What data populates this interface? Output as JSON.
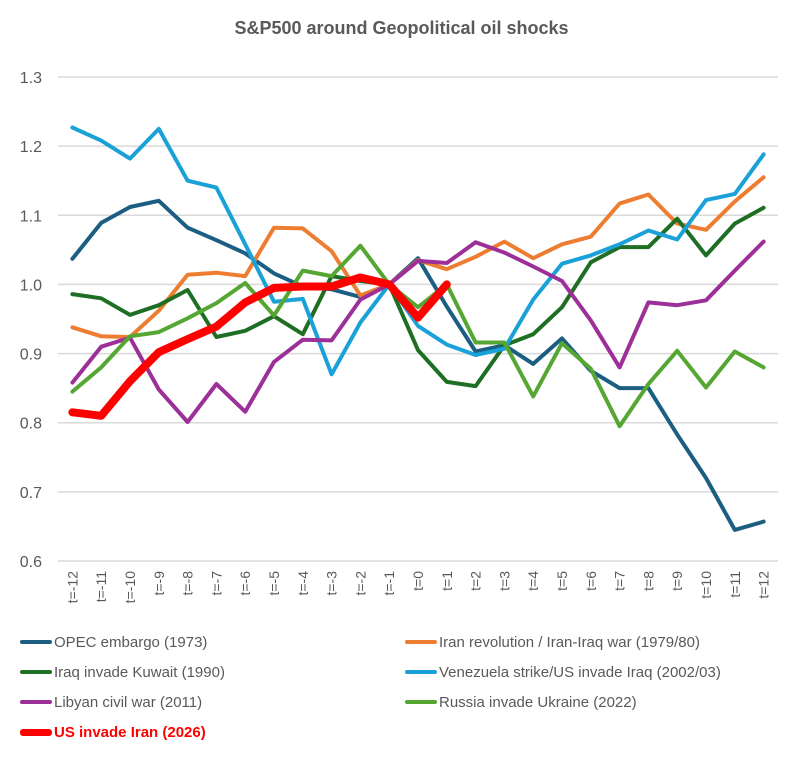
{
  "chart_data": {
    "type": "line",
    "title": "S&P500 around Geopolitical oil shocks",
    "xlabel": "",
    "ylabel": "",
    "ylim": [
      0.6,
      1.3
    ],
    "yticks": [
      "0.6",
      "0.7",
      "0.8",
      "0.9",
      "1.0",
      "1.1",
      "1.2",
      "1.3"
    ],
    "ytick_values": [
      0.6,
      0.7,
      0.8,
      0.9,
      1.0,
      1.1,
      1.2,
      1.3
    ],
    "grid": true,
    "legend_position": "bottom",
    "categories": [
      "t=-12",
      "t=-11",
      "t=-10",
      "t=-9",
      "t=-8",
      "t=-7",
      "t=-6",
      "t=-5",
      "t=-4",
      "t=-3",
      "t=-2",
      "t=-1",
      "t=0",
      "t=1",
      "t=2",
      "t=3",
      "t=4",
      "t=5",
      "t=6",
      "t=7",
      "t=8",
      "t=9",
      "t=10",
      "t=11",
      "t=12"
    ],
    "series": [
      {
        "name": "OPEC embargo (1973)",
        "color": "#1b5e82",
        "bold": false,
        "values": [
          1.037,
          1.089,
          1.112,
          1.121,
          1.082,
          1.064,
          1.045,
          1.016,
          0.997,
          0.993,
          0.982,
          1.0,
          1.038,
          0.968,
          0.903,
          0.912,
          0.885,
          0.922,
          0.875,
          0.85,
          0.85,
          0.783,
          0.72,
          0.645,
          0.657
        ]
      },
      {
        "name": "Iran revolution / Iran-Iraq war (1979/80)",
        "color": "#ed7d31",
        "bold": false,
        "values": [
          0.938,
          0.925,
          0.924,
          0.962,
          1.014,
          1.017,
          1.012,
          1.082,
          1.081,
          1.048,
          0.984,
          1.0,
          1.035,
          1.022,
          1.04,
          1.062,
          1.038,
          1.058,
          1.069,
          1.117,
          1.13,
          1.088,
          1.079,
          1.12,
          1.155
        ]
      },
      {
        "name": "Iraq invade Kuwait (1990)",
        "color": "#1e6e24",
        "bold": false,
        "values": [
          0.986,
          0.98,
          0.956,
          0.97,
          0.992,
          0.924,
          0.933,
          0.954,
          0.928,
          1.012,
          1.005,
          1.0,
          0.905,
          0.859,
          0.853,
          0.912,
          0.928,
          0.967,
          1.032,
          1.054,
          1.054,
          1.095,
          1.042,
          1.088,
          1.111
        ]
      },
      {
        "name": "Venezuela strike/US invade Iraq (2002/03)",
        "color": "#1aa2d8",
        "bold": false,
        "values": [
          1.227,
          1.208,
          1.182,
          1.225,
          1.15,
          1.14,
          1.058,
          0.975,
          0.979,
          0.87,
          0.945,
          1.0,
          0.94,
          0.913,
          0.898,
          0.907,
          0.978,
          1.03,
          1.042,
          1.058,
          1.078,
          1.065,
          1.122,
          1.131,
          1.188
        ]
      },
      {
        "name": "Libyan civil war (2011)",
        "color": "#9c2f98",
        "bold": false,
        "values": [
          0.858,
          0.91,
          0.923,
          0.848,
          0.801,
          0.856,
          0.816,
          0.888,
          0.92,
          0.919,
          0.978,
          1.0,
          1.034,
          1.031,
          1.061,
          1.046,
          1.026,
          1.005,
          0.948,
          0.88,
          0.974,
          0.97,
          0.977,
          1.02,
          1.062
        ]
      },
      {
        "name": "Russia invade Ukraine (2022)",
        "color": "#55a632",
        "bold": false,
        "values": [
          0.845,
          0.88,
          0.925,
          0.931,
          0.951,
          0.973,
          1.002,
          0.955,
          1.02,
          1.012,
          1.056,
          1.0,
          0.967,
          1.0,
          0.916,
          0.916,
          0.838,
          0.915,
          0.878,
          0.795,
          0.856,
          0.904,
          0.851,
          0.903,
          0.88
        ]
      },
      {
        "name": "US invade Iran (2026)",
        "color": "#ff0000",
        "bold": true,
        "values": [
          0.815,
          0.81,
          0.86,
          0.902,
          0.921,
          0.939,
          0.974,
          0.995,
          0.997,
          0.997,
          1.01,
          1.0,
          0.952,
          1.0,
          null,
          null,
          null,
          null,
          null,
          null,
          null,
          null,
          null,
          null,
          null
        ]
      }
    ]
  }
}
